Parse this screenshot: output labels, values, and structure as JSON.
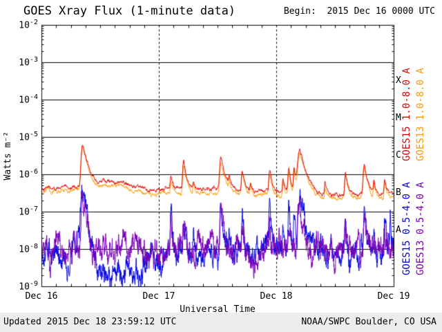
{
  "header": {
    "title": "GOES Xray Flux (1-minute data)",
    "begin": "Begin:  2015 Dec 16 0000 UTC"
  },
  "footer": {
    "updated": "Updated 2015 Dec 18 23:59:12 UTC",
    "source": "NOAA/SWPC Boulder, CO USA"
  },
  "chart_data": {
    "type": "line",
    "title": "GOES Xray Flux (1-minute data)",
    "xlabel": "Universal Time",
    "ylabel": "Watts m⁻²",
    "x_unit": "hours since 2015 Dec 16 0000 UTC",
    "axes": {
      "x_range_hours": [
        0,
        72
      ],
      "x_major_hours": [
        0,
        24,
        48,
        72
      ],
      "x_minor_step_hours": 3,
      "y_log_min": -9,
      "y_log_max": -2,
      "y_tick_mantissa": "10",
      "y_tick_exponents": [
        -2,
        -3,
        -4,
        -5,
        -6,
        -7,
        -8,
        -9
      ],
      "grid_horizontal": "solid-per-decade",
      "grid_vertical": "dashed-per-day"
    },
    "x_tick_labels": [
      {
        "hours": 0,
        "label": "Dec 16"
      },
      {
        "hours": 24,
        "label": "Dec 17"
      },
      {
        "hours": 48,
        "label": "Dec 18"
      },
      {
        "hours": 72,
        "label": "Dec 19"
      }
    ],
    "flare_classes": [
      {
        "label": "X",
        "log_flux": -3.5
      },
      {
        "label": "M",
        "log_flux": -4.5
      },
      {
        "label": "C",
        "log_flux": -5.5
      },
      {
        "label": "B",
        "log_flux": -6.5
      },
      {
        "label": "A",
        "log_flux": -7.5
      }
    ],
    "series": [
      {
        "name": "goes15-long",
        "label": "GOES15 1.0-8.0 A",
        "color": "#e00000",
        "baseline_keyframes_hours_flux": [
          [
            0,
            4.3e-07
          ],
          [
            1.2,
            5e-07
          ],
          [
            2,
            4.4e-07
          ],
          [
            3.5,
            4.2e-07
          ],
          [
            4.7,
            5.2e-07
          ],
          [
            5.5,
            4.6e-07
          ],
          [
            7,
            4.8e-07
          ],
          [
            8,
            5.2e-07
          ],
          [
            9.8,
            4.6e-07
          ],
          [
            11,
            5.4e-07
          ],
          [
            13,
            6.4e-07
          ],
          [
            15.5,
            6.4e-07
          ],
          [
            17.5,
            5.6e-07
          ],
          [
            19.5,
            4.6e-07
          ],
          [
            21,
            4e-07
          ],
          [
            23,
            3.9e-07
          ],
          [
            25,
            4.2e-07
          ],
          [
            28,
            4e-07
          ],
          [
            31,
            4.3e-07
          ],
          [
            34,
            4e-07
          ],
          [
            37,
            4.2e-07
          ],
          [
            40,
            3.8e-07
          ],
          [
            43,
            3.6e-07
          ],
          [
            46,
            3.7e-07
          ],
          [
            48,
            3.5e-07
          ],
          [
            52,
            3.3e-07
          ],
          [
            56,
            3.1e-07
          ],
          [
            60,
            2.9e-07
          ],
          [
            64,
            3e-07
          ],
          [
            68,
            2.9e-07
          ],
          [
            72,
            2.8e-07
          ]
        ],
        "flares": [
          {
            "t": 8.35,
            "peak": 6.3e-06,
            "rise": 0.22,
            "decay": 0.75
          },
          {
            "t": 26.4,
            "peak": 5e-07,
            "rise": 0.12,
            "decay": 0.35
          },
          {
            "t": 29.0,
            "peak": 1.9e-06,
            "rise": 0.15,
            "decay": 0.45
          },
          {
            "t": 31.0,
            "peak": 3e-07,
            "rise": 0.1,
            "decay": 0.3
          },
          {
            "t": 36.6,
            "peak": 2.4e-06,
            "rise": 0.18,
            "decay": 0.6
          },
          {
            "t": 38.3,
            "peak": 4e-07,
            "rise": 0.1,
            "decay": 0.3
          },
          {
            "t": 41.0,
            "peak": 1e-06,
            "rise": 0.15,
            "decay": 0.45
          },
          {
            "t": 42.7,
            "peak": 3e-07,
            "rise": 0.1,
            "decay": 0.3
          },
          {
            "t": 46.6,
            "peak": 8e-07,
            "rise": 0.15,
            "decay": 0.4
          },
          {
            "t": 49.3,
            "peak": 4e-07,
            "rise": 0.1,
            "decay": 0.3
          },
          {
            "t": 50.5,
            "peak": 1.1e-06,
            "rise": 0.15,
            "decay": 0.35
          },
          {
            "t": 51.6,
            "peak": 1.3e-06,
            "rise": 0.12,
            "decay": 0.35
          },
          {
            "t": 52.75,
            "peak": 4.3e-06,
            "rise": 0.3,
            "decay": 0.85
          },
          {
            "t": 57.9,
            "peak": 3e-07,
            "rise": 0.1,
            "decay": 0.3
          },
          {
            "t": 62.1,
            "peak": 8e-07,
            "rise": 0.15,
            "decay": 0.4
          },
          {
            "t": 65.95,
            "peak": 1.7e-06,
            "rise": 0.18,
            "decay": 0.5
          },
          {
            "t": 67.9,
            "peak": 4e-07,
            "rise": 0.1,
            "decay": 0.3
          },
          {
            "t": 70.1,
            "peak": 5e-07,
            "rise": 0.12,
            "decay": 0.35
          }
        ],
        "noise": {
          "persist": 0.9,
          "dex": 0.05,
          "jitter": 0.015
        }
      },
      {
        "name": "goes13-long",
        "label": "GOES13 1.0-8.0 A",
        "color": "#ff9a00",
        "baseline_keyframes_hours_flux": [
          [
            0,
            3.4e-07
          ],
          [
            1.2,
            4e-07
          ],
          [
            2,
            3.5e-07
          ],
          [
            3.5,
            3.4e-07
          ],
          [
            4.7,
            4.2e-07
          ],
          [
            5.5,
            3.7e-07
          ],
          [
            7,
            3.8e-07
          ],
          [
            8,
            4.2e-07
          ],
          [
            9.8,
            3.7e-07
          ],
          [
            11,
            4.3e-07
          ],
          [
            13,
            5.1e-07
          ],
          [
            15.5,
            5.1e-07
          ],
          [
            17.5,
            4.5e-07
          ],
          [
            19.5,
            3.7e-07
          ],
          [
            21,
            3.2e-07
          ],
          [
            23,
            3.1e-07
          ],
          [
            25,
            3.4e-07
          ],
          [
            28,
            3.2e-07
          ],
          [
            31,
            3.4e-07
          ],
          [
            34,
            3.2e-07
          ],
          [
            37,
            3.4e-07
          ],
          [
            40,
            3e-07
          ],
          [
            43,
            2.9e-07
          ],
          [
            46,
            3e-07
          ],
          [
            48,
            2.8e-07
          ],
          [
            52,
            2.6e-07
          ],
          [
            56,
            2.5e-07
          ],
          [
            60,
            2.3e-07
          ],
          [
            64,
            2.4e-07
          ],
          [
            68,
            2.3e-07
          ],
          [
            72,
            2.2e-07
          ]
        ],
        "flares": [
          {
            "t": 8.35,
            "peak": 5.4e-06,
            "rise": 0.22,
            "decay": 0.75
          },
          {
            "t": 26.4,
            "peak": 4.2e-07,
            "rise": 0.12,
            "decay": 0.35
          },
          {
            "t": 29.0,
            "peak": 1.6e-06,
            "rise": 0.15,
            "decay": 0.45
          },
          {
            "t": 31.0,
            "peak": 2.5e-07,
            "rise": 0.1,
            "decay": 0.3
          },
          {
            "t": 36.6,
            "peak": 2e-06,
            "rise": 0.18,
            "decay": 0.6
          },
          {
            "t": 38.3,
            "peak": 3.4e-07,
            "rise": 0.1,
            "decay": 0.3
          },
          {
            "t": 41.0,
            "peak": 8.5e-07,
            "rise": 0.15,
            "decay": 0.45
          },
          {
            "t": 42.7,
            "peak": 2.5e-07,
            "rise": 0.1,
            "decay": 0.3
          },
          {
            "t": 46.6,
            "peak": 6.8e-07,
            "rise": 0.15,
            "decay": 0.4
          },
          {
            "t": 49.3,
            "peak": 3.4e-07,
            "rise": 0.1,
            "decay": 0.3
          },
          {
            "t": 50.5,
            "peak": 9.4e-07,
            "rise": 0.15,
            "decay": 0.35
          },
          {
            "t": 51.6,
            "peak": 1.1e-06,
            "rise": 0.12,
            "decay": 0.35
          },
          {
            "t": 52.75,
            "peak": 3.7e-06,
            "rise": 0.3,
            "decay": 0.85
          },
          {
            "t": 57.9,
            "peak": 2.5e-07,
            "rise": 0.1,
            "decay": 0.3
          },
          {
            "t": 62.1,
            "peak": 6.8e-07,
            "rise": 0.15,
            "decay": 0.4
          },
          {
            "t": 65.95,
            "peak": 1.4e-06,
            "rise": 0.18,
            "decay": 0.5
          },
          {
            "t": 67.9,
            "peak": 3.4e-07,
            "rise": 0.1,
            "decay": 0.3
          },
          {
            "t": 70.1,
            "peak": 4.2e-07,
            "rise": 0.12,
            "decay": 0.35
          }
        ],
        "noise": {
          "persist": 0.9,
          "dex": 0.05,
          "jitter": 0.015
        }
      },
      {
        "name": "goes15-short",
        "label": "GOES15 0.5-4.0 A",
        "color": "#0000e0",
        "baseline_keyframes_hours_flux": [
          [
            0,
            8e-09
          ],
          [
            1,
            6.5e-09
          ],
          [
            2,
            9e-09
          ],
          [
            3,
            4.5e-09
          ],
          [
            4,
            7e-09
          ],
          [
            5,
            5e-09
          ],
          [
            6,
            8.5e-09
          ],
          [
            7,
            9.5e-09
          ],
          [
            8,
            1.1e-08
          ],
          [
            9.3,
            7e-09
          ],
          [
            10.5,
            3e-09
          ],
          [
            12,
            2.2e-09
          ],
          [
            14,
            2.6e-09
          ],
          [
            16,
            2.2e-09
          ],
          [
            18,
            2.8e-09
          ],
          [
            20,
            2.4e-09
          ],
          [
            21.5,
            4.5e-09
          ],
          [
            23,
            7.5e-09
          ],
          [
            26,
            8.5e-09
          ],
          [
            30,
            8e-09
          ],
          [
            34,
            8.5e-09
          ],
          [
            38,
            8e-09
          ],
          [
            42,
            8e-09
          ],
          [
            46,
            8.5e-09
          ],
          [
            50,
            9e-09
          ],
          [
            54,
            8.5e-09
          ],
          [
            58,
            8e-09
          ],
          [
            62,
            8e-09
          ],
          [
            66,
            8e-09
          ],
          [
            70,
            8e-09
          ],
          [
            72,
            8e-09
          ]
        ],
        "flares": [
          {
            "t": 8.35,
            "peak": 4.5e-07,
            "rise": 0.2,
            "decay": 0.5
          },
          {
            "t": 26.4,
            "peak": 1.3e-07,
            "rise": 0.08,
            "decay": 0.2
          },
          {
            "t": 29.0,
            "peak": 8e-08,
            "rise": 0.1,
            "decay": 0.3
          },
          {
            "t": 31.0,
            "peak": 2e-08,
            "rise": 0.08,
            "decay": 0.2
          },
          {
            "t": 36.6,
            "peak": 1.7e-07,
            "rise": 0.12,
            "decay": 0.35
          },
          {
            "t": 38.3,
            "peak": 2e-08,
            "rise": 0.08,
            "decay": 0.2
          },
          {
            "t": 41.0,
            "peak": 5e-08,
            "rise": 0.1,
            "decay": 0.25
          },
          {
            "t": 46.6,
            "peak": 1.2e-07,
            "rise": 0.1,
            "decay": 0.25
          },
          {
            "t": 49.3,
            "peak": 3e-08,
            "rise": 0.08,
            "decay": 0.2
          },
          {
            "t": 50.5,
            "peak": 9e-08,
            "rise": 0.1,
            "decay": 0.22
          },
          {
            "t": 51.6,
            "peak": 1e-07,
            "rise": 0.1,
            "decay": 0.22
          },
          {
            "t": 52.75,
            "peak": 3.8e-07,
            "rise": 0.2,
            "decay": 0.5
          },
          {
            "t": 62.1,
            "peak": 3e-08,
            "rise": 0.1,
            "decay": 0.22
          },
          {
            "t": 65.95,
            "peak": 1.1e-07,
            "rise": 0.12,
            "decay": 0.3
          },
          {
            "t": 67.9,
            "peak": 2e-08,
            "rise": 0.08,
            "decay": 0.2
          },
          {
            "t": 70.1,
            "peak": 6e-08,
            "rise": 0.1,
            "decay": 0.22
          },
          {
            "t": 71.3,
            "peak": 5e-08,
            "rise": 0.08,
            "decay": 0.2
          }
        ],
        "noise": {
          "persist": 0.88,
          "dex": 0.32,
          "jitter": 0.1
        }
      },
      {
        "name": "goes13-short",
        "label": "GOES13 0.5-4.0 A",
        "color": "#7a00b8",
        "baseline_keyframes_hours_flux": [
          [
            0,
            9e-09
          ],
          [
            4,
            8e-09
          ],
          [
            8,
            1e-08
          ],
          [
            12,
            8.5e-09
          ],
          [
            16,
            8e-09
          ],
          [
            20,
            8.5e-09
          ],
          [
            24,
            9e-09
          ],
          [
            28,
            8.5e-09
          ],
          [
            32,
            9e-09
          ],
          [
            36,
            8.5e-09
          ],
          [
            40,
            8e-09
          ],
          [
            44,
            8.5e-09
          ],
          [
            48,
            9e-09
          ],
          [
            52,
            9.5e-09
          ],
          [
            56,
            8.5e-09
          ],
          [
            60,
            8e-09
          ],
          [
            64,
            8.5e-09
          ],
          [
            68,
            8e-09
          ],
          [
            72,
            8e-09
          ]
        ],
        "flares": [
          {
            "t": 8.35,
            "peak": 2.2e-07,
            "rise": 0.2,
            "decay": 0.45
          },
          {
            "t": 26.4,
            "peak": 5e-08,
            "rise": 0.08,
            "decay": 0.2
          },
          {
            "t": 29.0,
            "peak": 3e-08,
            "rise": 0.1,
            "decay": 0.25
          },
          {
            "t": 36.6,
            "peak": 8e-08,
            "rise": 0.12,
            "decay": 0.3
          },
          {
            "t": 41.0,
            "peak": 2e-08,
            "rise": 0.1,
            "decay": 0.22
          },
          {
            "t": 46.6,
            "peak": 5e-08,
            "rise": 0.1,
            "decay": 0.22
          },
          {
            "t": 50.5,
            "peak": 4e-08,
            "rise": 0.1,
            "decay": 0.2
          },
          {
            "t": 52.75,
            "peak": 1.8e-07,
            "rise": 0.2,
            "decay": 0.45
          },
          {
            "t": 62.1,
            "peak": 1.5e-08,
            "rise": 0.1,
            "decay": 0.2
          },
          {
            "t": 65.95,
            "peak": 5e-08,
            "rise": 0.12,
            "decay": 0.25
          },
          {
            "t": 70.1,
            "peak": 2.5e-08,
            "rise": 0.1,
            "decay": 0.2
          }
        ],
        "noise": {
          "persist": 0.88,
          "dex": 0.36,
          "jitter": 0.12
        }
      }
    ]
  }
}
